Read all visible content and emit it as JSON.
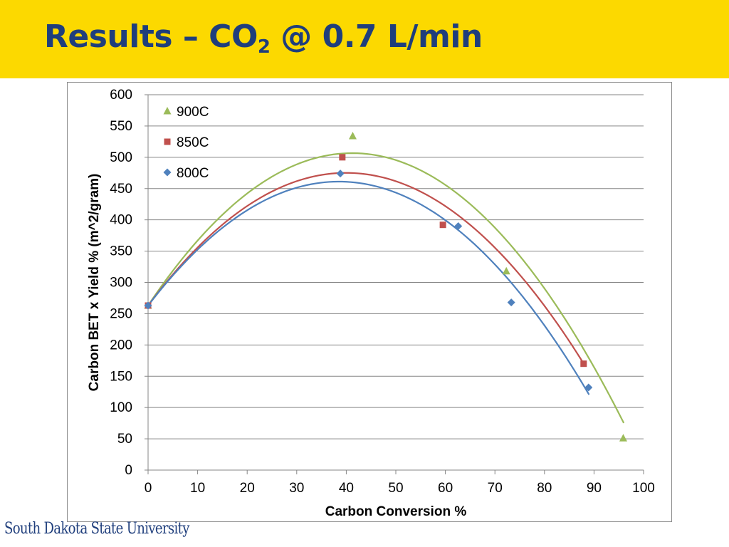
{
  "slide": {
    "title_main": "Results – CO",
    "title_sub": "2",
    "title_rest": " @ 0.7 L/min",
    "footer_logo": "South Dakota State University"
  },
  "chart_data": {
    "type": "scatter",
    "xlabel": "Carbon Conversion %",
    "ylabel": "Carbon BET x Yield % (m^2/gram)",
    "xlim": [
      0,
      100
    ],
    "ylim": [
      0,
      600
    ],
    "xticks": [
      "0",
      "10",
      "20",
      "30",
      "40",
      "50",
      "60",
      "70",
      "80",
      "90",
      "100"
    ],
    "yticks": [
      "0",
      "50",
      "100",
      "150",
      "200",
      "250",
      "300",
      "350",
      "400",
      "450",
      "500",
      "550",
      "600"
    ],
    "grid": "horizontal",
    "legend_position": "top-left",
    "series": [
      {
        "name": "900C",
        "color": "#9bbb59",
        "marker": "triangle",
        "points": [
          [
            0,
            263
          ],
          [
            41.3,
            534
          ],
          [
            72.3,
            318
          ],
          [
            95.9,
            51
          ]
        ],
        "trendline": {
          "type": "polynomial-2",
          "x_range": [
            0,
            96
          ],
          "coef": [
            263,
            11.83,
            -0.1436
          ]
        }
      },
      {
        "name": "850C",
        "color": "#c0504d",
        "marker": "square",
        "points": [
          [
            0,
            263
          ],
          [
            39.2,
            500
          ],
          [
            59.5,
            392
          ],
          [
            87.9,
            170
          ]
        ],
        "trendline": {
          "type": "polynomial-2",
          "x_range": [
            0,
            88
          ],
          "coef": [
            263,
            10.61,
            -0.1327
          ]
        }
      },
      {
        "name": "800C",
        "color": "#4f81bd",
        "marker": "diamond",
        "points": [
          [
            0,
            263
          ],
          [
            38.8,
            474
          ],
          [
            62.6,
            390
          ],
          [
            73.3,
            268
          ],
          [
            88.9,
            132
          ]
        ],
        "trendline": {
          "type": "polynomial-2",
          "x_range": [
            0,
            89
          ],
          "coef": [
            263,
            10.29,
            -0.1336
          ]
        }
      }
    ]
  }
}
